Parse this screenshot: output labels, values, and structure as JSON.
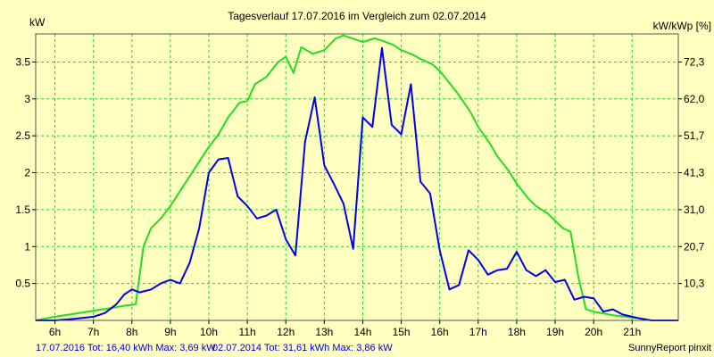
{
  "chart_data": {
    "type": "line",
    "title": "Tagesverlauf 17.07.2016 im Vergleich zum 02.07.2014",
    "ylabel_left": "kW",
    "ylabel_right": "kW/kWp [%]",
    "xlim": [
      5.5,
      22.2
    ],
    "ylim": [
      0,
      3.88
    ],
    "x_ticks": [
      6,
      7,
      8,
      9,
      10,
      11,
      12,
      13,
      14,
      15,
      16,
      17,
      18,
      19,
      20,
      21
    ],
    "x_tick_labels": [
      "6h",
      "7h",
      "8h",
      "9h",
      "10h",
      "11h",
      "12h",
      "13h",
      "14h",
      "15h",
      "16h",
      "17h",
      "18h",
      "19h",
      "20h",
      "21h"
    ],
    "y_left_ticks": [
      0.5,
      1,
      1.5,
      2,
      2.5,
      3,
      3.5
    ],
    "y_left_tick_labels": [
      "0.5",
      "1",
      "1.5",
      "2",
      "2.5",
      "3",
      "3.5"
    ],
    "y_right_tick_values": [
      0.5,
      1,
      1.5,
      2,
      2.5,
      3,
      3.5
    ],
    "y_right_tick_labels": [
      "10,3",
      "20,7",
      "31,0",
      "41,3",
      "51,7",
      "62,0",
      "72,3"
    ],
    "grid": true,
    "series": [
      {
        "color": "#22dd22",
        "x": [
          5.5,
          6.0,
          6.5,
          7.0,
          7.5,
          7.8,
          8.0,
          8.1,
          8.3,
          8.5,
          8.75,
          9.0,
          9.25,
          9.5,
          9.75,
          10.0,
          10.25,
          10.5,
          10.8,
          11.0,
          11.2,
          11.5,
          11.8,
          12.0,
          12.2,
          12.4,
          12.7,
          13.0,
          13.3,
          13.5,
          14.0,
          14.3,
          14.5,
          14.8,
          15.0,
          15.3,
          15.5,
          15.8,
          16.0,
          16.2,
          16.5,
          16.8,
          17.0,
          17.3,
          17.5,
          17.8,
          18.0,
          18.3,
          18.5,
          18.8,
          19.0,
          19.2,
          19.4,
          19.6,
          19.8,
          20.0,
          20.5,
          21.0,
          21.3,
          21.5,
          21.8,
          22.2
        ],
        "y": [
          0.0,
          0.05,
          0.09,
          0.13,
          0.17,
          0.2,
          0.21,
          0.22,
          1.0,
          1.25,
          1.38,
          1.55,
          1.75,
          1.95,
          2.15,
          2.35,
          2.52,
          2.75,
          2.95,
          2.97,
          3.2,
          3.3,
          3.5,
          3.57,
          3.35,
          3.7,
          3.61,
          3.66,
          3.82,
          3.86,
          3.77,
          3.82,
          3.79,
          3.73,
          3.66,
          3.6,
          3.54,
          3.47,
          3.38,
          3.25,
          3.05,
          2.82,
          2.62,
          2.4,
          2.22,
          2.02,
          1.85,
          1.65,
          1.55,
          1.45,
          1.35,
          1.25,
          1.2,
          0.6,
          0.15,
          0.12,
          0.07,
          0.04,
          0.02,
          0.0,
          0.0,
          0.0
        ]
      },
      {
        "color": "#0000ee",
        "x": [
          5.5,
          6.0,
          6.5,
          7.0,
          7.3,
          7.6,
          7.8,
          8.0,
          8.2,
          8.5,
          8.75,
          9.0,
          9.25,
          9.5,
          9.75,
          10.0,
          10.25,
          10.5,
          10.75,
          11.0,
          11.25,
          11.5,
          11.75,
          12.0,
          12.25,
          12.5,
          12.75,
          13.0,
          13.25,
          13.5,
          13.75,
          14.0,
          14.25,
          14.5,
          14.75,
          15.0,
          15.25,
          15.5,
          15.75,
          16.0,
          16.25,
          16.5,
          16.75,
          17.0,
          17.25,
          17.5,
          17.75,
          18.0,
          18.25,
          18.5,
          18.75,
          19.0,
          19.25,
          19.5,
          19.75,
          20.0,
          20.25,
          20.5,
          20.75,
          21.0,
          21.25,
          21.5,
          21.75,
          22.2
        ],
        "y": [
          0.0,
          0.0,
          0.02,
          0.05,
          0.1,
          0.22,
          0.35,
          0.42,
          0.38,
          0.42,
          0.5,
          0.55,
          0.5,
          0.78,
          1.25,
          2.0,
          2.18,
          2.2,
          1.68,
          1.55,
          1.38,
          1.42,
          1.5,
          1.1,
          0.88,
          2.42,
          3.02,
          2.1,
          1.85,
          1.58,
          0.97,
          2.75,
          2.62,
          3.69,
          2.65,
          2.52,
          3.2,
          1.88,
          1.72,
          0.95,
          0.42,
          0.48,
          0.95,
          0.82,
          0.62,
          0.68,
          0.7,
          0.93,
          0.68,
          0.6,
          0.68,
          0.52,
          0.55,
          0.28,
          0.32,
          0.3,
          0.12,
          0.15,
          0.08,
          0.05,
          0.02,
          0.0,
          0.0,
          0.0
        ]
      }
    ],
    "footer_left_a": "17.07.2016 Tot: 16,40 kWh Max: 3,69 kW",
    "footer_left_b": "02.07.2014 Tot: 31,61 kWh Max: 3,86 kW",
    "footer_right": "SunnyReport pinxit",
    "colors": {
      "background": "#ffffc0",
      "grid": "#33cc33",
      "frame": "#555555"
    }
  }
}
